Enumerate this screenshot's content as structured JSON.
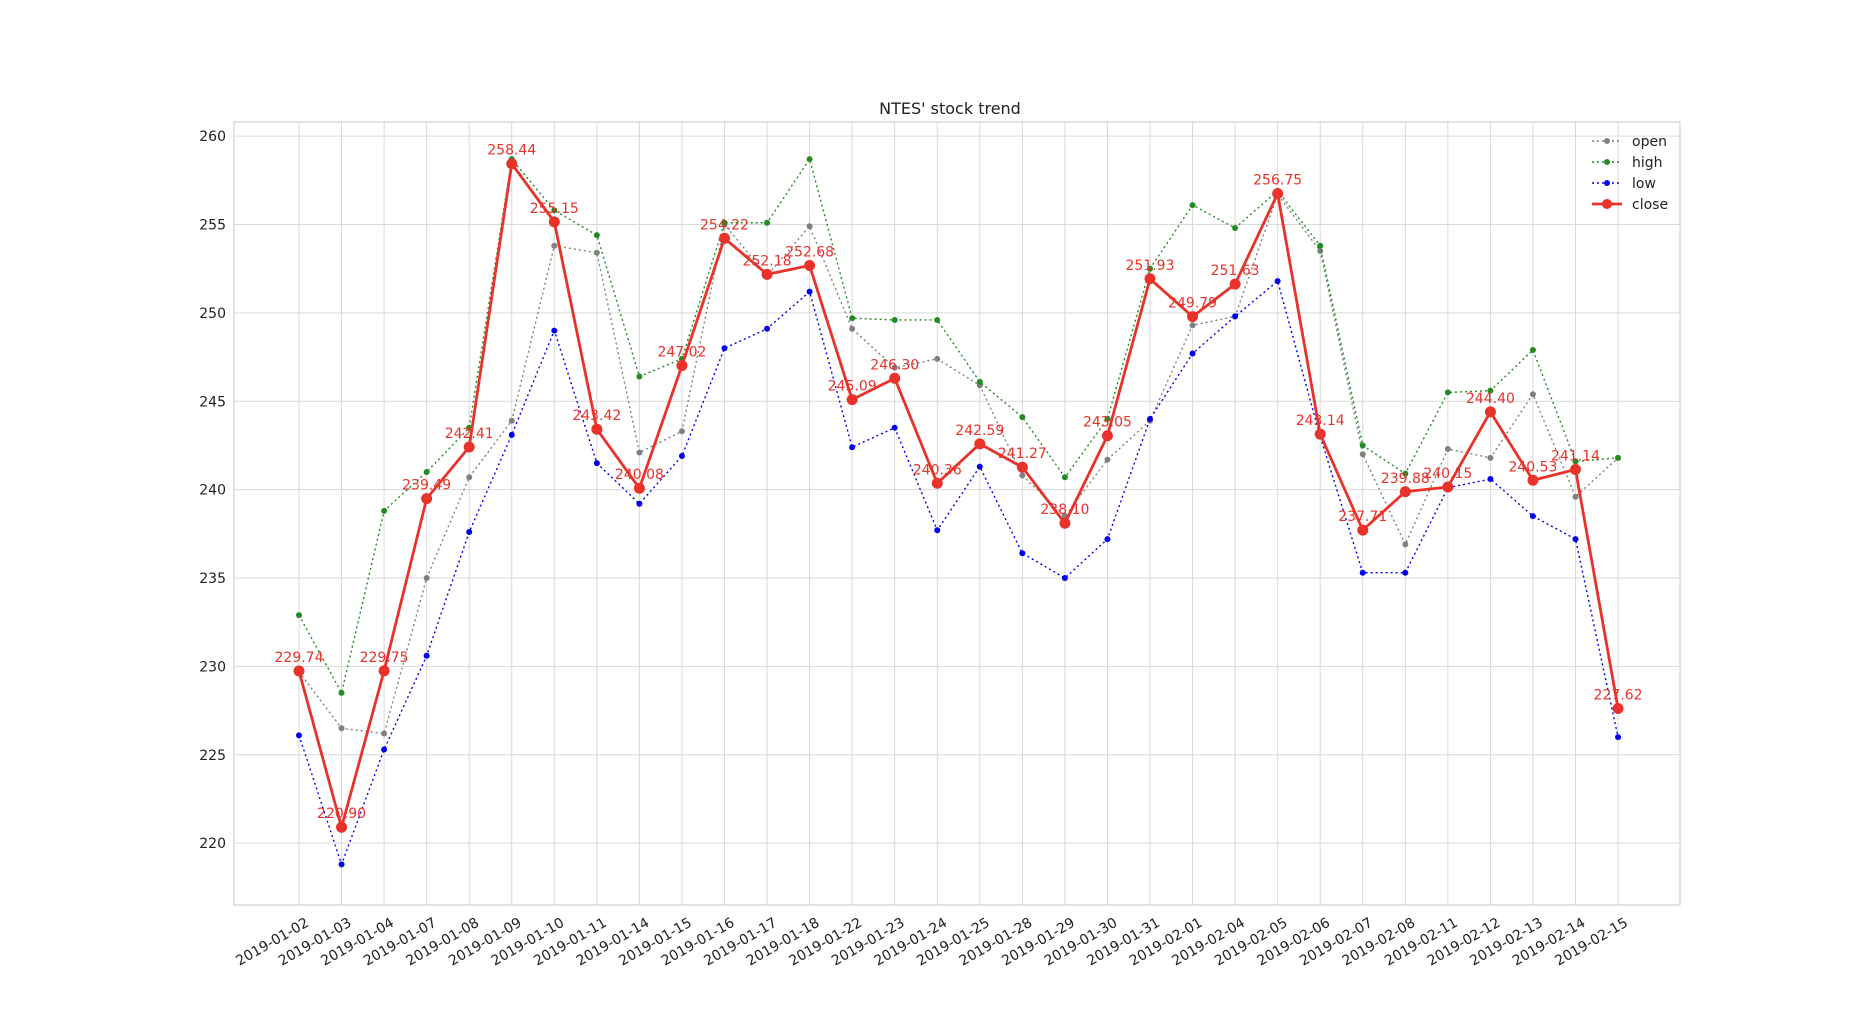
{
  "chart_data": {
    "type": "line",
    "title": "NTES' stock trend",
    "xlabel": "",
    "ylabel": "",
    "ylim": [
      216.5,
      260.8
    ],
    "yticks": [
      220,
      225,
      230,
      235,
      240,
      245,
      250,
      255,
      260
    ],
    "grid": true,
    "legend_position": "top-right",
    "x": [
      "2019-01-02",
      "2019-01-03",
      "2019-01-04",
      "2019-01-07",
      "2019-01-08",
      "2019-01-09",
      "2019-01-10",
      "2019-01-11",
      "2019-01-14",
      "2019-01-15",
      "2019-01-16",
      "2019-01-17",
      "2019-01-18",
      "2019-01-22",
      "2019-01-23",
      "2019-01-24",
      "2019-01-25",
      "2019-01-28",
      "2019-01-29",
      "2019-01-30",
      "2019-01-31",
      "2019-02-01",
      "2019-02-04",
      "2019-02-05",
      "2019-02-06",
      "2019-02-07",
      "2019-02-08",
      "2019-02-11",
      "2019-02-12",
      "2019-02-13",
      "2019-02-14",
      "2019-02-15"
    ],
    "series": [
      {
        "name": "open",
        "color": "#808080",
        "style": "dotted",
        "values": [
          229.7,
          226.5,
          226.2,
          235.0,
          240.7,
          243.9,
          253.8,
          253.4,
          242.1,
          243.3,
          255.0,
          252.1,
          254.9,
          249.1,
          246.9,
          247.4,
          245.9,
          240.8,
          238.5,
          241.7,
          243.9,
          249.3,
          249.8,
          256.7,
          253.5,
          242.0,
          236.9,
          242.3,
          241.8,
          245.4,
          239.6,
          241.8
        ]
      },
      {
        "name": "high",
        "color": "#228B22",
        "style": "dotted",
        "values": [
          232.9,
          228.5,
          238.8,
          241.0,
          243.5,
          258.7,
          255.8,
          254.4,
          246.4,
          247.4,
          255.1,
          255.1,
          258.7,
          249.7,
          249.6,
          249.6,
          246.1,
          244.1,
          240.7,
          244.0,
          252.5,
          256.1,
          254.8,
          256.9,
          253.8,
          242.5,
          240.9,
          245.5,
          245.6,
          247.9,
          241.6,
          241.8
        ]
      },
      {
        "name": "low",
        "color": "#0000EE",
        "style": "dotted",
        "values": [
          226.1,
          218.8,
          225.3,
          230.6,
          237.6,
          243.1,
          249.0,
          241.5,
          239.2,
          241.9,
          248.0,
          249.1,
          251.2,
          242.4,
          243.5,
          237.7,
          241.3,
          236.4,
          235.0,
          237.2,
          244.0,
          247.7,
          249.8,
          251.8,
          243.0,
          235.3,
          235.3,
          240.1,
          240.6,
          238.5,
          237.2,
          226.0
        ]
      },
      {
        "name": "close",
        "color": "#E8322A",
        "style": "solid",
        "values": [
          229.74,
          220.9,
          229.75,
          239.49,
          242.41,
          258.44,
          255.15,
          243.42,
          240.08,
          247.02,
          254.22,
          252.18,
          252.68,
          245.09,
          246.3,
          240.36,
          242.59,
          241.27,
          238.1,
          243.05,
          251.93,
          249.79,
          251.63,
          256.75,
          243.14,
          237.71,
          239.88,
          240.15,
          244.4,
          240.53,
          241.14,
          227.62
        ],
        "labels": [
          "229.74",
          "220.90",
          "229.75",
          "239.49",
          "242.41",
          "258.44",
          "255.15",
          "243.42",
          "240.08",
          "247.02",
          "254.22",
          "252.18",
          "252.68",
          "245.09",
          "246.30",
          "240.36",
          "242.59",
          "241.27",
          "238.10",
          "243.05",
          "251.93",
          "249.79",
          "251.63",
          "256.75",
          "243.14",
          "237.71",
          "239.88",
          "240.15",
          "244.40",
          "240.53",
          "241.14",
          "227.62"
        ]
      }
    ]
  }
}
